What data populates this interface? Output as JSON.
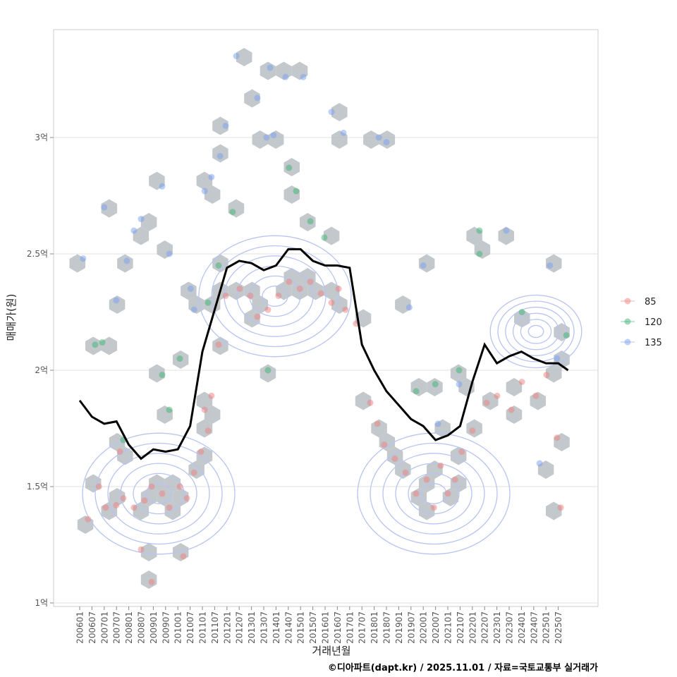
{
  "chart_data": {
    "type": "scatter",
    "title": "",
    "xlabel": "거래년월",
    "ylabel": "매매가(원)",
    "caption": "©디아파트(dapt.kr) / 2025.11.01 / 자료=국토교통부 실거래가",
    "x_ticks": [
      "200601",
      "200607",
      "200701",
      "200707",
      "200801",
      "200807",
      "200901",
      "200907",
      "201001",
      "201007",
      "201101",
      "201107",
      "201201",
      "201207",
      "201301",
      "201307",
      "201401",
      "201407",
      "201501",
      "201507",
      "201601",
      "201607",
      "201701",
      "201707",
      "201801",
      "201807",
      "201901",
      "201907",
      "202001",
      "202007",
      "202101",
      "202107",
      "202201",
      "202207",
      "202301",
      "202307",
      "202401",
      "202407",
      "202501",
      "202507"
    ],
    "y_ticks": [
      {
        "value": 1.0,
        "label": "1억"
      },
      {
        "value": 1.5,
        "label": "1.5억"
      },
      {
        "value": 2.0,
        "label": "2억"
      },
      {
        "value": 2.5,
        "label": "2.5억"
      },
      {
        "value": 3.0,
        "label": "3억"
      }
    ],
    "ylim": [
      0.98,
      3.48
    ],
    "xlim_years": [
      2004.9,
      2027.1
    ],
    "grid": true,
    "legend": {
      "placement": "right",
      "entries": [
        {
          "label": "85",
          "color": "#f08080"
        },
        {
          "label": "120",
          "color": "#3cb371"
        },
        {
          "label": "135",
          "color": "#7aa0f0"
        }
      ]
    },
    "moving_average": {
      "color": "#000000",
      "x_years": [
        2006.0,
        2006.5,
        2007.0,
        2007.5,
        2008.0,
        2008.5,
        2009.0,
        2009.5,
        2010.0,
        2010.5,
        2011.0,
        2011.5,
        2012.0,
        2012.5,
        2013.0,
        2013.5,
        2014.0,
        2014.5,
        2015.0,
        2015.5,
        2016.0,
        2016.5,
        2017.0,
        2017.5,
        2018.0,
        2018.5,
        2019.0,
        2019.5,
        2020.0,
        2020.5,
        2021.0,
        2021.5,
        2022.0,
        2022.5,
        2023.0,
        2023.5,
        2024.0,
        2024.5,
        2025.0,
        2025.5,
        2025.9
      ],
      "values": [
        1.87,
        1.8,
        1.77,
        1.78,
        1.68,
        1.62,
        1.66,
        1.65,
        1.66,
        1.76,
        2.08,
        2.26,
        2.44,
        2.47,
        2.46,
        2.43,
        2.45,
        2.52,
        2.52,
        2.47,
        2.45,
        2.45,
        2.44,
        2.11,
        2.0,
        1.91,
        1.85,
        1.79,
        1.76,
        1.7,
        1.72,
        1.76,
        1.95,
        2.11,
        2.03,
        2.06,
        2.08,
        2.05,
        2.03,
        2.03,
        2.0
      ]
    },
    "series": [
      {
        "name": "85",
        "color": "#f08080",
        "points": [
          [
            2006.34,
            1.36
          ],
          [
            2006.78,
            1.5
          ],
          [
            2007.06,
            1.41
          ],
          [
            2007.49,
            1.42
          ],
          [
            2007.78,
            1.45
          ],
          [
            2008.21,
            1.41
          ],
          [
            2008.64,
            1.44
          ],
          [
            2008.93,
            1.5
          ],
          [
            2009.36,
            1.47
          ],
          [
            2009.65,
            1.41
          ],
          [
            2010.08,
            1.5
          ],
          [
            2010.37,
            1.45
          ],
          [
            2010.66,
            1.56
          ],
          [
            2010.94,
            1.65
          ],
          [
            2011.09,
            1.83
          ],
          [
            2011.37,
            1.89
          ],
          [
            2011.23,
            1.74
          ],
          [
            2011.66,
            2.11
          ],
          [
            2011.95,
            2.32
          ],
          [
            2012.52,
            2.35
          ],
          [
            2012.95,
            2.32
          ],
          [
            2013.24,
            2.23
          ],
          [
            2013.67,
            2.26
          ],
          [
            2014.1,
            2.32
          ],
          [
            2014.53,
            2.38
          ],
          [
            2014.97,
            2.35
          ],
          [
            2015.4,
            2.38
          ],
          [
            2015.83,
            2.33
          ],
          [
            2016.26,
            2.29
          ],
          [
            2016.55,
            2.35
          ],
          [
            2016.83,
            2.26
          ],
          [
            2017.26,
            2.2
          ],
          [
            2017.84,
            1.86
          ],
          [
            2018.13,
            1.77
          ],
          [
            2018.41,
            1.68
          ],
          [
            2018.84,
            1.62
          ],
          [
            2019.28,
            1.56
          ],
          [
            2019.71,
            1.47
          ],
          [
            2020.14,
            1.53
          ],
          [
            2020.43,
            1.41
          ],
          [
            2020.71,
            1.59
          ],
          [
            2021.0,
            1.47
          ],
          [
            2021.29,
            1.53
          ],
          [
            2021.57,
            1.65
          ],
          [
            2022.0,
            1.74
          ],
          [
            2022.58,
            1.86
          ],
          [
            2023.01,
            1.89
          ],
          [
            2023.59,
            1.83
          ],
          [
            2024.02,
            1.95
          ],
          [
            2024.59,
            1.89
          ],
          [
            2025.02,
            1.98
          ],
          [
            2025.45,
            1.71
          ],
          [
            2025.6,
            1.41
          ],
          [
            2007.64,
            1.65
          ],
          [
            2008.93,
            1.09
          ],
          [
            2010.22,
            1.2
          ],
          [
            2008.5,
            1.23
          ]
        ]
      },
      {
        "name": "120",
        "color": "#3cb371",
        "points": [
          [
            2006.63,
            2.11
          ],
          [
            2006.92,
            2.12
          ],
          [
            2007.78,
            1.7
          ],
          [
            2009.36,
            1.98
          ],
          [
            2009.65,
            1.83
          ],
          [
            2010.08,
            2.05
          ],
          [
            2011.23,
            2.29
          ],
          [
            2011.66,
            2.45
          ],
          [
            2012.23,
            2.68
          ],
          [
            2013.67,
            2.0
          ],
          [
            2014.53,
            2.87
          ],
          [
            2014.82,
            2.77
          ],
          [
            2015.4,
            2.64
          ],
          [
            2015.97,
            2.57
          ],
          [
            2019.71,
            1.91
          ],
          [
            2020.49,
            1.94
          ],
          [
            2021.46,
            2.0
          ],
          [
            2022.29,
            2.6
          ],
          [
            2022.29,
            2.5
          ],
          [
            2024.02,
            2.25
          ],
          [
            2025.83,
            2.15
          ]
        ]
      },
      {
        "name": "135",
        "color": "#7aa0f0",
        "points": [
          [
            2006.14,
            2.48
          ],
          [
            2007.0,
            2.7
          ],
          [
            2007.49,
            2.3
          ],
          [
            2007.92,
            2.47
          ],
          [
            2008.21,
            2.6
          ],
          [
            2008.5,
            2.65
          ],
          [
            2009.36,
            2.79
          ],
          [
            2009.65,
            2.5
          ],
          [
            2010.52,
            2.35
          ],
          [
            2010.66,
            2.26
          ],
          [
            2011.09,
            2.77
          ],
          [
            2011.37,
            2.83
          ],
          [
            2011.72,
            2.92
          ],
          [
            2011.95,
            3.05
          ],
          [
            2012.38,
            3.35
          ],
          [
            2013.24,
            3.17
          ],
          [
            2013.61,
            3.0
          ],
          [
            2013.9,
            3.01
          ],
          [
            2013.76,
            3.3
          ],
          [
            2014.39,
            3.26
          ],
          [
            2015.11,
            3.26
          ],
          [
            2016.26,
            3.11
          ],
          [
            2016.75,
            3.02
          ],
          [
            2018.19,
            3.0
          ],
          [
            2018.5,
            2.98
          ],
          [
            2020.0,
            2.45
          ],
          [
            2019.43,
            2.27
          ],
          [
            2020.6,
            1.77
          ],
          [
            2021.46,
            1.94
          ],
          [
            2023.38,
            2.6
          ],
          [
            2025.16,
            2.45
          ],
          [
            2025.45,
            2.05
          ],
          [
            2024.74,
            1.6
          ]
        ]
      }
    ]
  }
}
